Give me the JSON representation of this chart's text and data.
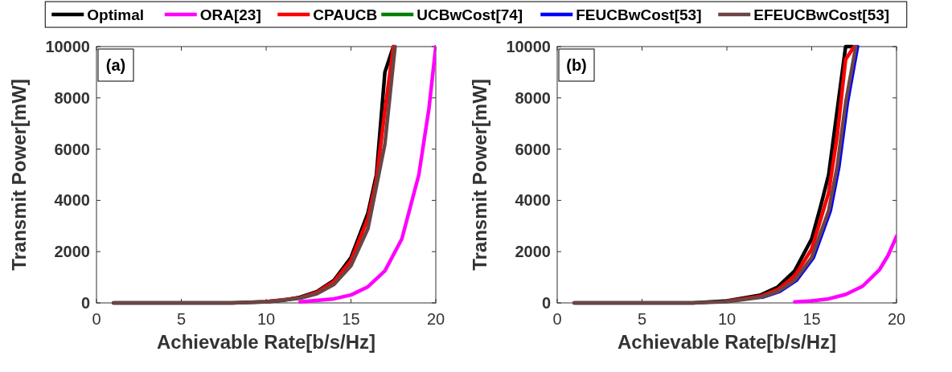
{
  "chart_data": [
    {
      "type": "line",
      "xlabel": "Achievable Rate[b/s/Hz]",
      "ylabel": "Transmit Power[mW]",
      "annotations": [
        "(a)"
      ],
      "xlim": [
        0,
        20
      ],
      "xticks": [
        0,
        5,
        10,
        15,
        20
      ],
      "ylim": [
        0,
        10000
      ],
      "yticks": [
        0,
        2000,
        4000,
        6000,
        8000,
        10000
      ],
      "legend": "top",
      "line_style": "solid",
      "marker": "none",
      "series": [
        {
          "name": "Optimal",
          "color": "#000000",
          "x": [
            1,
            5,
            8,
            10,
            11,
            12,
            13,
            14,
            15,
            16,
            16.5,
            17,
            17.5
          ],
          "values": [
            0,
            0,
            0,
            50,
            100,
            220,
            440,
            880,
            1770,
            3500,
            5000,
            9000,
            10000
          ]
        },
        {
          "name": "ORA[23]",
          "color": "#ff00ff",
          "x": [
            12,
            14,
            15,
            16,
            17,
            18,
            19,
            19.6,
            20
          ],
          "values": [
            40,
            160,
            310,
            630,
            1250,
            2500,
            5000,
            7600,
            10000
          ]
        },
        {
          "name": "CPAUCB",
          "color": "#ff0000",
          "x": [
            10,
            12,
            13,
            14,
            15,
            16,
            16.5,
            17,
            17.5
          ],
          "values": [
            50,
            200,
            410,
            830,
            1650,
            3300,
            4800,
            7500,
            10000
          ]
        },
        {
          "name": "UCBwCost[74]",
          "color": "#008000"
        },
        {
          "name": "FEUCBwCost[53]",
          "color": "#0000ff"
        },
        {
          "name": "EFEUCBwCost[53]",
          "color": "#6b4545",
          "x": [
            1,
            5,
            8,
            10,
            12,
            13,
            14,
            15,
            16,
            17,
            17.6
          ],
          "values": [
            0,
            0,
            0,
            40,
            180,
            360,
            720,
            1450,
            2900,
            6200,
            10000
          ]
        }
      ]
    },
    {
      "type": "line",
      "xlabel": "Achievable Rate[b/s/Hz]",
      "ylabel": "Transmit Power[mW]",
      "annotations": [
        "(b)"
      ],
      "xlim": [
        0,
        20
      ],
      "xticks": [
        0,
        5,
        10,
        15,
        20
      ],
      "ylim": [
        0,
        10000
      ],
      "yticks": [
        0,
        2000,
        4000,
        6000,
        8000,
        10000
      ],
      "line_style": "solid",
      "marker": "none",
      "series": [
        {
          "color": "#000000",
          "x": [
            1,
            5,
            8,
            10,
            12,
            13,
            14,
            15,
            15.5,
            16,
            16.5,
            17,
            17.4
          ],
          "values": [
            0,
            0,
            0,
            80,
            310,
            620,
            1250,
            2500,
            3700,
            5000,
            7500,
            10000,
            10000
          ]
        },
        {
          "color": "#ff00ff",
          "x": [
            14,
            15,
            16,
            17,
            18,
            19,
            19.5,
            20
          ],
          "values": [
            40,
            80,
            160,
            330,
            650,
            1300,
            1850,
            2600
          ]
        },
        {
          "color": "#ff0000",
          "x": [
            10,
            12,
            13,
            14,
            15,
            16,
            16.5,
            17,
            17.5
          ],
          "values": [
            60,
            260,
            520,
            1050,
            2100,
            4300,
            6500,
            9500,
            10000
          ]
        },
        {
          "color": "#0000ff",
          "x": [
            12.1,
            13.1,
            14.1,
            15.1,
            16.1,
            16.6,
            17.1,
            17.7
          ],
          "values": [
            220,
            440,
            880,
            1770,
            3600,
            5300,
            7800,
            10000
          ]
        },
        {
          "color": "#6b4545",
          "x": [
            1,
            5,
            8,
            10,
            12,
            13,
            14,
            15,
            16,
            16.5,
            17,
            17.6
          ],
          "values": [
            0,
            0,
            0,
            50,
            220,
            440,
            880,
            1770,
            3600,
            5300,
            7800,
            10000
          ]
        }
      ]
    }
  ]
}
